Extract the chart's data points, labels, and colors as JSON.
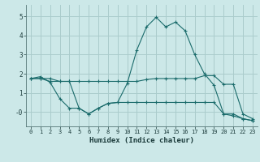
{
  "xlabel": "Humidex (Indice chaleur)",
  "ylabel": "",
  "bg_color": "#cce8e8",
  "grid_color": "#aacccc",
  "line_color": "#1a6b6b",
  "xlim": [
    -0.5,
    23.5
  ],
  "ylim": [
    -0.75,
    5.6
  ],
  "yticks": [
    0,
    1,
    2,
    3,
    4,
    5
  ],
  "ytick_labels": [
    "-0",
    "1",
    "2",
    "3",
    "4",
    "5"
  ],
  "xticks": [
    0,
    1,
    2,
    3,
    4,
    5,
    6,
    7,
    8,
    9,
    10,
    11,
    12,
    13,
    14,
    15,
    16,
    17,
    18,
    19,
    20,
    21,
    22,
    23
  ],
  "line1_x": [
    0,
    1,
    2,
    3,
    4,
    5,
    6,
    7,
    8,
    9,
    10,
    11,
    12,
    13,
    14,
    15,
    16,
    17,
    18,
    19,
    20,
    21,
    22,
    23
  ],
  "line1_y": [
    1.75,
    1.85,
    1.55,
    0.7,
    0.2,
    0.2,
    -0.1,
    0.2,
    0.45,
    0.5,
    1.5,
    3.25,
    4.45,
    4.95,
    4.45,
    4.7,
    4.25,
    3.0,
    2.0,
    1.4,
    -0.1,
    -0.1,
    -0.35,
    -0.45
  ],
  "line2_x": [
    0,
    1,
    2,
    3,
    4,
    5,
    6,
    7,
    8,
    9,
    10,
    11,
    12,
    13,
    14,
    15,
    16,
    17,
    18,
    19,
    20,
    21,
    22,
    23
  ],
  "line2_y": [
    1.75,
    1.75,
    1.6,
    1.6,
    1.6,
    1.6,
    1.6,
    1.6,
    1.6,
    1.6,
    1.6,
    1.6,
    1.7,
    1.75,
    1.75,
    1.75,
    1.75,
    1.75,
    1.9,
    1.9,
    1.45,
    1.45,
    -0.1,
    -0.35
  ],
  "line3_x": [
    0,
    1,
    2,
    3,
    4,
    5,
    6,
    7,
    8,
    9,
    10,
    11,
    12,
    13,
    14,
    15,
    16,
    17,
    18,
    19,
    20,
    21,
    22,
    23
  ],
  "line3_y": [
    1.75,
    1.75,
    1.75,
    1.6,
    1.6,
    0.2,
    -0.1,
    0.2,
    0.45,
    0.5,
    0.5,
    0.5,
    0.5,
    0.5,
    0.5,
    0.5,
    0.5,
    0.5,
    0.5,
    0.5,
    -0.1,
    -0.2,
    -0.35,
    -0.45
  ]
}
